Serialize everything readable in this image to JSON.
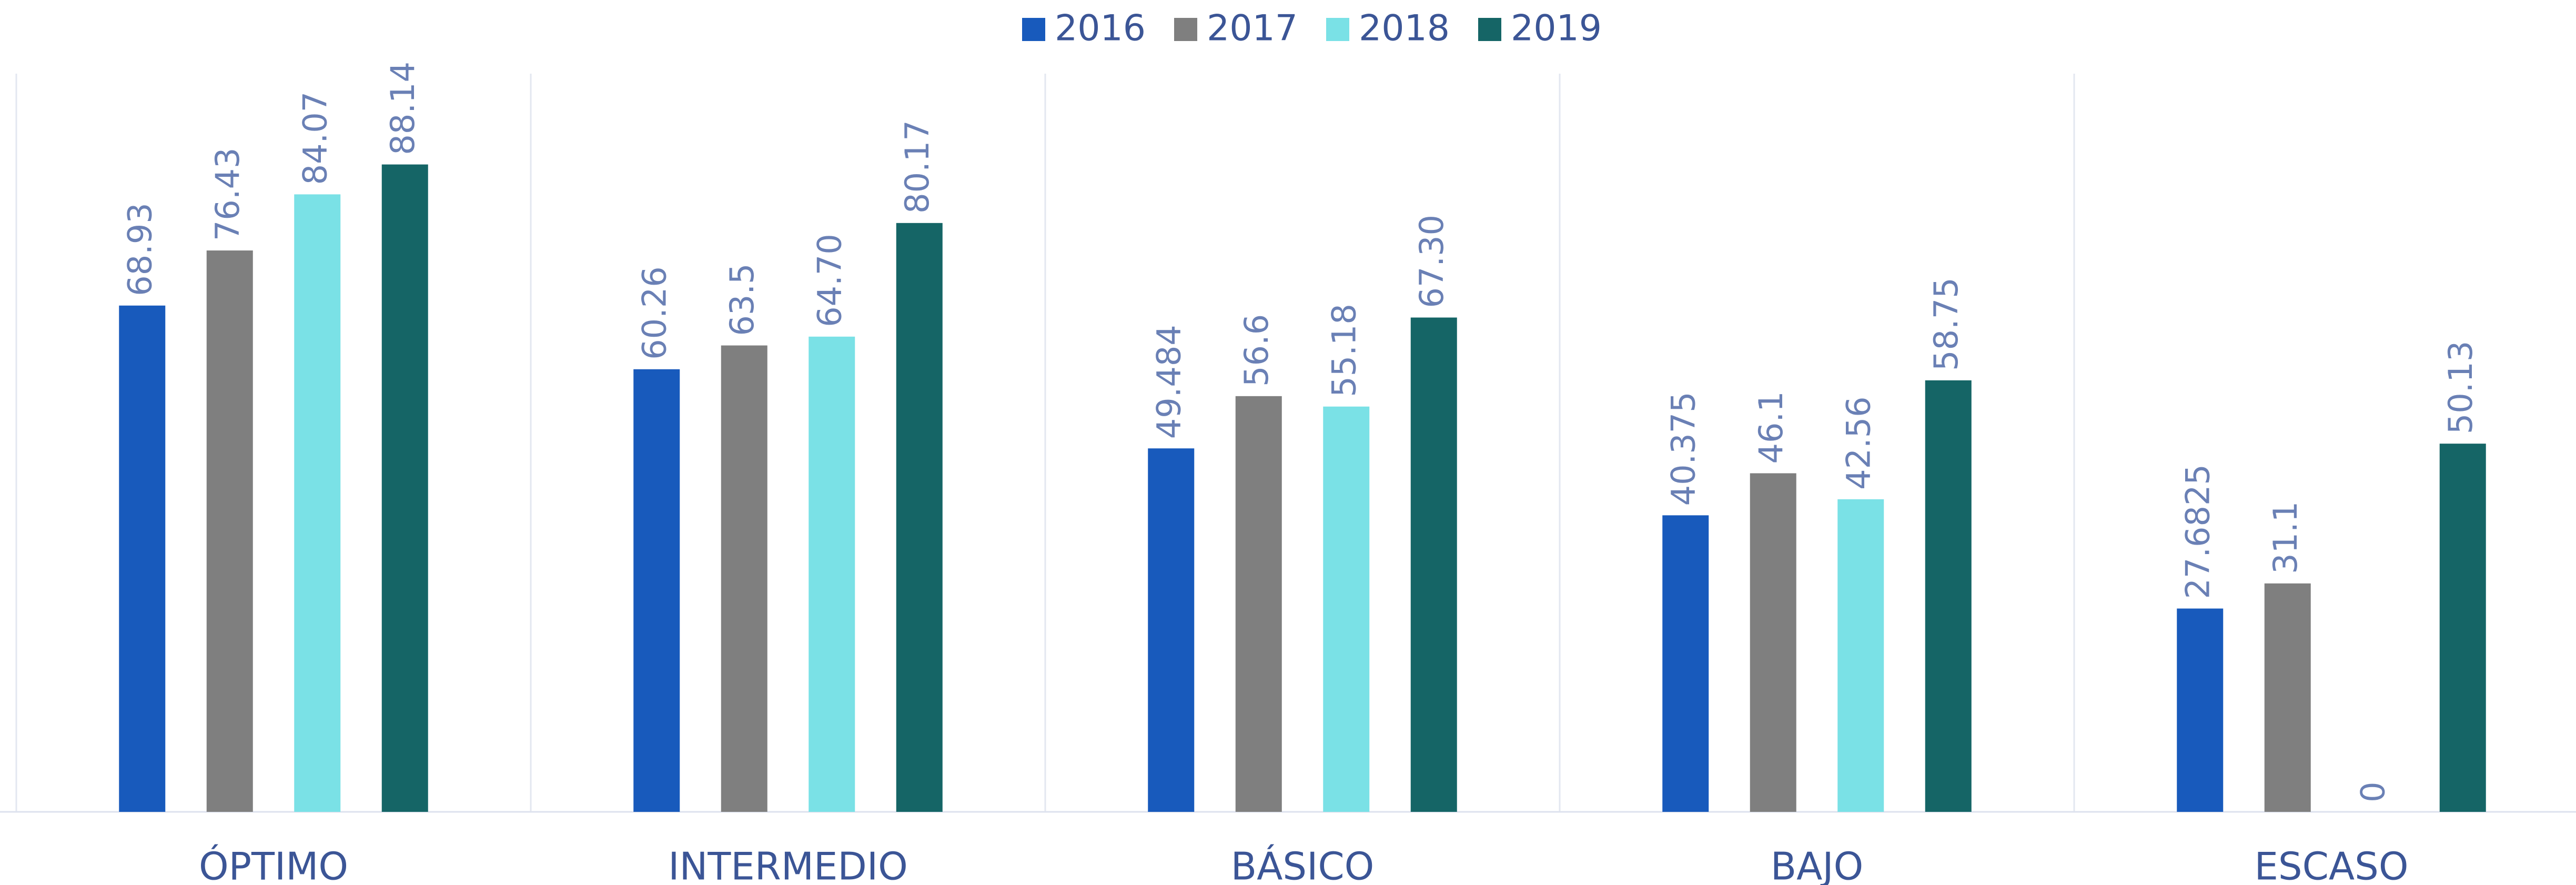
{
  "chart_data": {
    "type": "bar",
    "categories": [
      "ÓPTIMO",
      "INTERMEDIO",
      "BÁSICO",
      "BAJO",
      "ESCASO"
    ],
    "series": [
      {
        "name": "2016",
        "color": "#185abc",
        "values": [
          68.93,
          60.26,
          49.484,
          40.375,
          27.6825
        ]
      },
      {
        "name": "2017",
        "color": "#7f7f7f",
        "values": [
          76.43,
          63.5,
          56.6,
          46.1,
          31.1
        ]
      },
      {
        "name": "2018",
        "color": "#7ae1e6",
        "values": [
          84.07,
          64.7,
          55.18,
          42.56,
          0
        ],
        "value_labels": [
          "84.07",
          "64.70",
          "55.18",
          "42.56",
          "0"
        ]
      },
      {
        "name": "2019",
        "color": "#156566",
        "values": [
          88.14,
          80.17,
          67.3,
          58.75,
          50.13
        ],
        "value_labels": [
          "88.14",
          "80.17",
          "67.30",
          "58.75",
          "50.13"
        ]
      }
    ],
    "ylim": [
      0,
      100
    ],
    "legend": "top"
  }
}
